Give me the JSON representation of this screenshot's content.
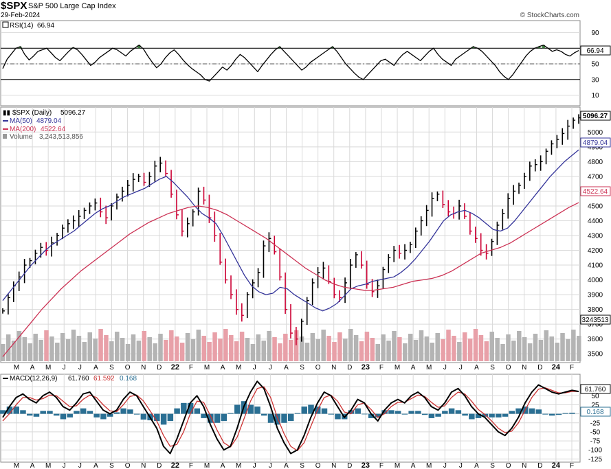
{
  "header": {
    "symbol": "$SPX",
    "name": "S&P 500 Large Cap Index",
    "date": "29-Feb-2024",
    "brand": "© StockCharts.com"
  },
  "colors": {
    "price_up": "#000000",
    "price_down": "#cc0033",
    "ma50": "#333399",
    "ma200": "#cc3355",
    "volume_up": "#b4b4b4",
    "volume_down": "#e8a0a8",
    "rsi": "#000000",
    "rsi_overbought_fill": "#3a7a3a",
    "macd": "#000000",
    "macd_signal": "#cc3333",
    "macd_hist": "#2a6f93",
    "grid": "#d9d9d9"
  },
  "chart_data": [
    {
      "type": "line",
      "panel": "rsi",
      "legend": {
        "label": "RSI(14)",
        "value": "66.94"
      },
      "value_badge": "66.94",
      "ylim": [
        0,
        100
      ],
      "y_ticks": [
        "90",
        "70",
        "50",
        "30",
        "10"
      ],
      "overbought": 70,
      "oversold": 30,
      "series": [
        {
          "name": "RSI(14)",
          "values": [
            44,
            56,
            63,
            70,
            72,
            62,
            55,
            60,
            66,
            68,
            70,
            64,
            58,
            54,
            60,
            66,
            71,
            68,
            62,
            55,
            48,
            52,
            58,
            62,
            66,
            70,
            68,
            64,
            60,
            66,
            70,
            74,
            69,
            60,
            52,
            45,
            50,
            58,
            64,
            68,
            62,
            55,
            49,
            44,
            40,
            36,
            30,
            28,
            34,
            40,
            46,
            42,
            48,
            56,
            62,
            58,
            52,
            46,
            40,
            48,
            55,
            62,
            68,
            72,
            66,
            60,
            54,
            48,
            42,
            46,
            52,
            56,
            60,
            64,
            68,
            72,
            66,
            58,
            50,
            44,
            38,
            33,
            30,
            36,
            42,
            48,
            54,
            56,
            52,
            48,
            56,
            62,
            66,
            62,
            58,
            54,
            60,
            66,
            70,
            62,
            56,
            52,
            48,
            56,
            60,
            64,
            68,
            72,
            70,
            66,
            60,
            54,
            48,
            40,
            34,
            30,
            36,
            44,
            52,
            60,
            66,
            70,
            72,
            74,
            70,
            66,
            68,
            66,
            62,
            60,
            64,
            67
          ]
        }
      ]
    },
    {
      "type": "line",
      "panel": "price",
      "legend": [
        {
          "label": "$SPX (Daily)",
          "value": "5096.27"
        },
        {
          "label": "MA(50)",
          "value": "4879.04"
        },
        {
          "label": "MA(200)",
          "value": "4522.64"
        },
        {
          "label": "Volume",
          "value": "3,243,513,856"
        }
      ],
      "badges": [
        "5096.27",
        "4879.04",
        "4522.64",
        "3243513"
      ],
      "ylim": [
        3450,
        5150
      ],
      "y_ticks": [
        "5000",
        "4900",
        "4800",
        "4700",
        "4600",
        "4500",
        "4400",
        "4300",
        "4200",
        "4100",
        "4000",
        "3900",
        "3800",
        "3700",
        "3600",
        "3500"
      ],
      "x_ticks": [
        "M",
        "A",
        "M",
        "J",
        "J",
        "A",
        "S",
        "O",
        "N",
        "D",
        "22",
        "F",
        "M",
        "A",
        "M",
        "J",
        "J",
        "A",
        "S",
        "O",
        "N",
        "D",
        "23",
        "F",
        "M",
        "A",
        "M",
        "J",
        "J",
        "A",
        "S",
        "O",
        "N",
        "D",
        "24",
        "F"
      ],
      "x_range": [
        "2021-03",
        "2024-02"
      ],
      "series": [
        {
          "name": "$SPX (Daily)",
          "values": [
            3790,
            3880,
            3960,
            4020,
            4100,
            4130,
            4180,
            4220,
            4200,
            4250,
            4300,
            4350,
            4380,
            4400,
            4430,
            4470,
            4500,
            4520,
            4460,
            4420,
            4500,
            4560,
            4600,
            4640,
            4680,
            4700,
            4660,
            4700,
            4770,
            4790,
            4720,
            4580,
            4440,
            4330,
            4380,
            4460,
            4600,
            4540,
            4420,
            4300,
            4120,
            4000,
            3900,
            3800,
            3760,
            3900,
            3980,
            4050,
            4230,
            4280,
            4190,
            4020,
            3800,
            3640,
            3600,
            3720,
            3860,
            3980,
            4050,
            4080,
            3990,
            3900,
            3880,
            3980,
            4100,
            4170,
            4100,
            3970,
            3920,
            3960,
            4070,
            4150,
            4200,
            4180,
            4200,
            4240,
            4330,
            4400,
            4470,
            4550,
            4580,
            4510,
            4460,
            4450,
            4500,
            4430,
            4330,
            4280,
            4200,
            4180,
            4260,
            4370,
            4450,
            4550,
            4600,
            4640,
            4700,
            4770,
            4780,
            4800,
            4870,
            4920,
            4950,
            4990,
            5040,
            5080,
            5096.27
          ]
        },
        {
          "name": "MA(50)",
          "values": [
            3860,
            3920,
            3980,
            4040,
            4100,
            4150,
            4200,
            4240,
            4270,
            4300,
            4330,
            4370,
            4410,
            4450,
            4480,
            4500,
            4530,
            4560,
            4580,
            4600,
            4620,
            4650,
            4680,
            4700,
            4660,
            4610,
            4560,
            4500,
            4450,
            4420,
            4380,
            4300,
            4210,
            4120,
            4030,
            3960,
            3920,
            3900,
            3910,
            3950,
            3940,
            3900,
            3870,
            3840,
            3810,
            3790,
            3810,
            3840,
            3890,
            3940,
            3960,
            3970,
            3990,
            4000,
            4010,
            4020,
            4050,
            4090,
            4140,
            4200,
            4260,
            4330,
            4400,
            4440,
            4460,
            4470,
            4450,
            4420,
            4380,
            4340,
            4330,
            4350,
            4400,
            4460,
            4520,
            4580,
            4640,
            4700,
            4750,
            4800,
            4840,
            4879.04
          ]
        },
        {
          "name": "MA(200)",
          "values": [
            3480,
            3560,
            3640,
            3720,
            3800,
            3870,
            3940,
            4000,
            4060,
            4110,
            4160,
            4210,
            4260,
            4310,
            4350,
            4390,
            4420,
            4450,
            4470,
            4490,
            4500,
            4490,
            4470,
            4440,
            4400,
            4360,
            4320,
            4280,
            4230,
            4180,
            4130,
            4080,
            4040,
            4000,
            3970,
            3950,
            3940,
            3930,
            3930,
            3940,
            3950,
            3970,
            3990,
            4000,
            4010,
            4030,
            4060,
            4100,
            4140,
            4180,
            4200,
            4220,
            4250,
            4290,
            4330,
            4370,
            4410,
            4450,
            4490,
            4522.64
          ]
        }
      ]
    },
    {
      "type": "line",
      "panel": "macd",
      "legend": {
        "label": "MACD(12,26,9)",
        "macd": "61.760",
        "signal": "61.592",
        "hist": "0.168"
      },
      "badges": [
        "61.760",
        "0.168"
      ],
      "ylim": [
        -130,
        100
      ],
      "y_ticks": [
        "75",
        "50",
        "25",
        "0",
        "-25",
        "-50",
        "-75",
        "-100",
        "-125"
      ],
      "series": [
        {
          "name": "MACD",
          "values": [
            -10,
            20,
            45,
            55,
            40,
            30,
            50,
            60,
            45,
            20,
            10,
            30,
            55,
            60,
            35,
            10,
            0,
            10,
            40,
            60,
            50,
            20,
            -10,
            -40,
            -90,
            -110,
            -70,
            -20,
            30,
            50,
            20,
            -30,
            -70,
            -100,
            -90,
            -40,
            20,
            60,
            90,
            70,
            20,
            -40,
            -80,
            -110,
            -100,
            -60,
            -10,
            30,
            60,
            50,
            20,
            -10,
            10,
            40,
            30,
            0,
            -20,
            10,
            30,
            40,
            30,
            50,
            60,
            45,
            20,
            10,
            30,
            60,
            70,
            50,
            20,
            0,
            -10,
            -30,
            -50,
            -60,
            -40,
            -10,
            30,
            60,
            80,
            70,
            60,
            55,
            60,
            65,
            61.76
          ]
        },
        {
          "name": "Signal",
          "values": [
            -20,
            0,
            25,
            45,
            45,
            38,
            42,
            52,
            50,
            35,
            20,
            22,
            40,
            52,
            45,
            25,
            8,
            6,
            25,
            48,
            52,
            36,
            8,
            -20,
            -60,
            -90,
            -85,
            -50,
            0,
            35,
            32,
            -5,
            -45,
            -80,
            -92,
            -65,
            -15,
            35,
            70,
            75,
            45,
            -10,
            -55,
            -90,
            -102,
            -80,
            -35,
            10,
            45,
            52,
            35,
            5,
            0,
            25,
            30,
            12,
            -10,
            0,
            20,
            32,
            32,
            42,
            52,
            48,
            32,
            18,
            22,
            45,
            60,
            55,
            35,
            12,
            -2,
            -20,
            -40,
            -52,
            -48,
            -25,
            10,
            45,
            68,
            72,
            65,
            58,
            58,
            62,
            61.592
          ]
        },
        {
          "name": "Histogram",
          "values": [
            10,
            20,
            20,
            10,
            -5,
            -8,
            8,
            8,
            -5,
            -15,
            -10,
            8,
            15,
            8,
            -10,
            -15,
            -8,
            4,
            15,
            12,
            -2,
            -16,
            -18,
            -20,
            -30,
            -20,
            15,
            30,
            30,
            15,
            -12,
            -25,
            -25,
            -20,
            2,
            25,
            35,
            25,
            20,
            -5,
            -25,
            -30,
            -25,
            -20,
            2,
            20,
            25,
            20,
            15,
            -2,
            -15,
            -15,
            10,
            15,
            0,
            -12,
            -10,
            10,
            10,
            8,
            -2,
            8,
            8,
            -3,
            -12,
            -8,
            8,
            15,
            10,
            -5,
            -15,
            -12,
            -8,
            -10,
            -10,
            -8,
            8,
            15,
            20,
            15,
            12,
            -2,
            -5,
            -3,
            2,
            3,
            0.168
          ]
        }
      ]
    }
  ]
}
